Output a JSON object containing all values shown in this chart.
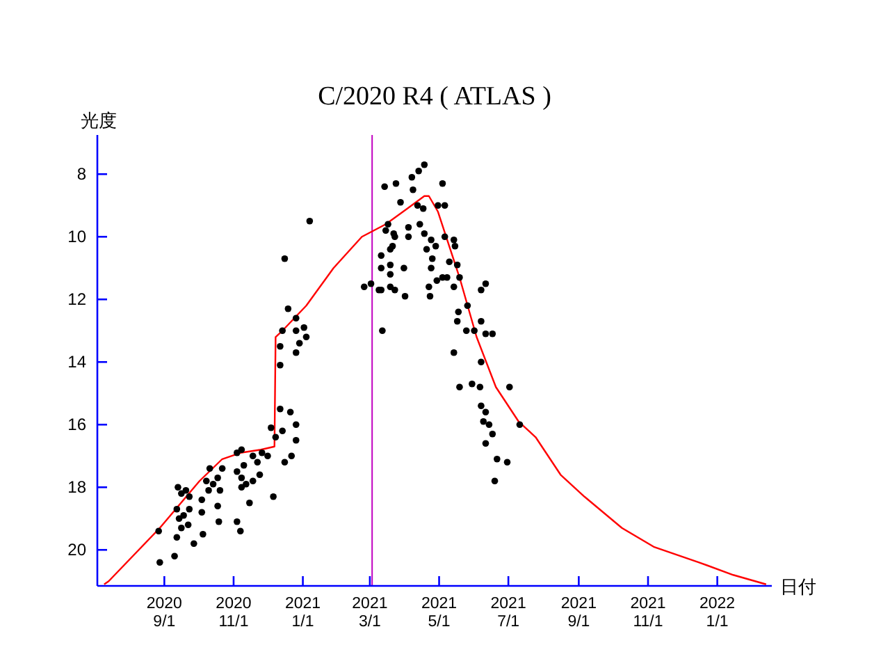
{
  "chart_data": {
    "type": "scatter",
    "title": "C/2020 R4 ( ATLAS )",
    "xlabel": "日付",
    "ylabel": "光度",
    "xlim": [
      "2020-07-04",
      "2022-02-18"
    ],
    "ylim": [
      21.15,
      6.75
    ],
    "xticks": [
      {
        "value": "2020-09-01",
        "label": "2020\n9/1"
      },
      {
        "value": "2020-11-01",
        "label": "2020\n11/1"
      },
      {
        "value": "2021-01-01",
        "label": "2021\n1/1"
      },
      {
        "value": "2021-03-01",
        "label": "2021\n3/1"
      },
      {
        "value": "2021-05-01",
        "label": "2021\n5/1"
      },
      {
        "value": "2021-07-01",
        "label": "2021\n7/1"
      },
      {
        "value": "2021-09-01",
        "label": "2021\n9/1"
      },
      {
        "value": "2021-11-01",
        "label": "2021\n11/1"
      },
      {
        "value": "2022-01-01",
        "label": "2022\n1/1"
      }
    ],
    "yticks": [
      8,
      10,
      12,
      14,
      16,
      18,
      20
    ],
    "ref_lines": [
      {
        "axis": "x",
        "value": "2021-03-03",
        "label": null,
        "color": "#c000c0"
      }
    ],
    "series": [
      {
        "type": "line",
        "color": "#ff0000",
        "line_style": "solid",
        "x": [
          "2020-07-10",
          "2020-07-14",
          "2020-08-28",
          "2020-10-02",
          "2020-10-22",
          "2020-11-07",
          "2020-11-25",
          "2020-12-07",
          "2020-12-08",
          "2020-12-14",
          "2021-01-04",
          "2021-01-28",
          "2021-02-22",
          "2021-03-15",
          "2021-04-03",
          "2021-04-18",
          "2021-04-22",
          "2021-04-30",
          "2021-05-19",
          "2021-06-03",
          "2021-06-20",
          "2021-07-10",
          "2021-07-25",
          "2021-08-16",
          "2021-09-06",
          "2021-10-09",
          "2021-11-06",
          "2021-12-16",
          "2022-01-15",
          "2022-02-13"
        ],
        "values": [
          21.1,
          21.0,
          19.3,
          17.8,
          17.1,
          16.9,
          16.8,
          16.7,
          13.2,
          13.0,
          12.2,
          11.0,
          10.0,
          9.6,
          9.1,
          8.7,
          8.7,
          9.2,
          11.3,
          13.2,
          14.8,
          15.9,
          16.4,
          17.6,
          18.3,
          19.3,
          19.9,
          20.4,
          20.8,
          21.1
        ]
      },
      {
        "type": "scatter",
        "color": "#000000",
        "marker": "circle",
        "x": [
          "2020-08-28",
          "2020-09-10",
          "2020-09-27",
          "2020-10-05",
          "2020-08-27",
          "2020-09-13",
          "2020-09-16",
          "2020-09-20",
          "2020-09-23",
          "2020-09-12",
          "2020-09-14",
          "2020-09-16",
          "2020-09-12",
          "2020-09-18",
          "2020-09-22",
          "2020-09-23",
          "2020-10-04",
          "2020-10-04",
          "2020-10-11",
          "2020-10-08",
          "2020-10-14",
          "2020-10-18",
          "2020-10-22",
          "2020-10-18",
          "2020-10-19",
          "2020-10-10",
          "2020-10-20",
          "2020-11-04",
          "2020-11-08",
          "2020-11-10",
          "2020-11-04",
          "2020-11-08",
          "2020-11-12",
          "2020-11-18",
          "2020-11-08",
          "2020-11-15",
          "2020-11-04",
          "2020-11-07",
          "2020-11-18",
          "2020-11-22",
          "2020-11-26",
          "2020-12-01",
          "2020-11-24",
          "2020-12-06",
          "2020-12-04",
          "2020-12-08",
          "2020-12-12",
          "2020-12-14",
          "2020-12-21",
          "2020-12-26",
          "2020-12-26",
          "2020-12-22",
          "2020-12-16",
          "2020-12-12",
          "2020-12-12",
          "2020-12-14",
          "2020-12-19",
          "2020-12-26",
          "2020-12-26",
          "2020-12-29",
          "2020-12-26",
          "2021-01-02",
          "2021-01-04",
          "2020-12-16",
          "2021-01-07",
          "2021-02-24",
          "2021-03-02",
          "2021-03-11",
          "2021-03-12",
          "2021-03-11",
          "2021-03-19",
          "2021-03-19",
          "2021-03-11",
          "2021-03-19",
          "2021-03-21",
          "2021-03-23",
          "2021-03-14",
          "2021-03-24",
          "2021-04-01",
          "2021-03-31",
          "2021-04-04",
          "2021-04-07",
          "2021-04-13",
          "2021-04-18",
          "2021-04-08",
          "2021-03-15",
          "2021-05-04",
          "2021-04-30",
          "2021-03-28",
          "2021-04-12",
          "2021-04-17",
          "2021-05-06",
          "2021-03-17",
          "2021-03-22",
          "2021-03-19",
          "2021-04-04",
          "2021-04-14",
          "2021-04-18",
          "2021-04-24",
          "2021-04-28",
          "2021-04-20",
          "2021-04-25",
          "2021-05-06",
          "2021-05-14",
          "2021-05-15",
          "2021-05-10",
          "2021-05-17",
          "2021-05-04",
          "2021-05-08",
          "2021-04-24",
          "2021-04-29",
          "2021-05-19",
          "2021-05-14",
          "2021-06-07",
          "2021-06-11",
          "2021-04-22",
          "2021-04-23",
          "2021-03-23",
          "2021-03-09",
          "2021-05-26",
          "2021-05-18",
          "2021-05-17",
          "2021-05-25",
          "2021-06-01",
          "2021-06-07",
          "2021-06-11",
          "2021-06-17",
          "2021-05-14",
          "2021-06-07",
          "2021-05-19",
          "2021-05-30",
          "2021-06-06",
          "2021-07-02",
          "2021-06-07",
          "2021-06-11",
          "2021-06-09",
          "2021-06-14",
          "2021-06-17",
          "2021-06-11",
          "2021-07-11",
          "2021-06-21",
          "2021-06-30",
          "2021-06-19"
        ],
        "values": [
          20.4,
          20.2,
          19.8,
          19.5,
          19.4,
          18.0,
          18.2,
          18.1,
          18.3,
          18.7,
          19.0,
          19.3,
          19.6,
          18.9,
          19.2,
          18.7,
          18.4,
          18.8,
          17.4,
          17.8,
          17.9,
          17.7,
          17.4,
          18.6,
          19.1,
          18.1,
          18.1,
          16.9,
          16.8,
          17.3,
          17.5,
          17.7,
          17.9,
          17.8,
          18.0,
          18.5,
          19.1,
          19.4,
          17.0,
          17.2,
          16.9,
          17.0,
          17.6,
          18.3,
          16.1,
          16.4,
          15.5,
          16.2,
          15.6,
          16.0,
          16.5,
          17.0,
          17.2,
          14.1,
          13.5,
          13.0,
          12.3,
          12.6,
          13.0,
          13.4,
          13.7,
          12.9,
          13.2,
          10.7,
          9.5,
          11.6,
          11.5,
          11.7,
          13.0,
          11.0,
          11.2,
          11.6,
          10.6,
          10.9,
          10.3,
          10.0,
          8.4,
          8.3,
          11.9,
          11.0,
          9.7,
          8.1,
          7.9,
          7.7,
          8.5,
          9.8,
          8.3,
          9.0,
          8.9,
          9.0,
          9.1,
          9.0,
          9.6,
          9.9,
          10.4,
          10.0,
          9.6,
          9.9,
          10.1,
          10.3,
          10.4,
          10.7,
          10.0,
          10.1,
          10.3,
          10.8,
          10.9,
          11.3,
          11.3,
          11.0,
          11.4,
          11.3,
          11.6,
          11.7,
          11.5,
          11.6,
          11.9,
          11.7,
          11.7,
          12.2,
          12.4,
          12.7,
          13.0,
          13.0,
          12.7,
          13.1,
          13.1,
          13.7,
          14.0,
          14.8,
          14.7,
          14.8,
          14.8,
          15.4,
          15.6,
          15.9,
          16.0,
          16.3,
          16.6,
          16.0,
          17.1,
          17.2,
          17.8
        ]
      }
    ]
  }
}
